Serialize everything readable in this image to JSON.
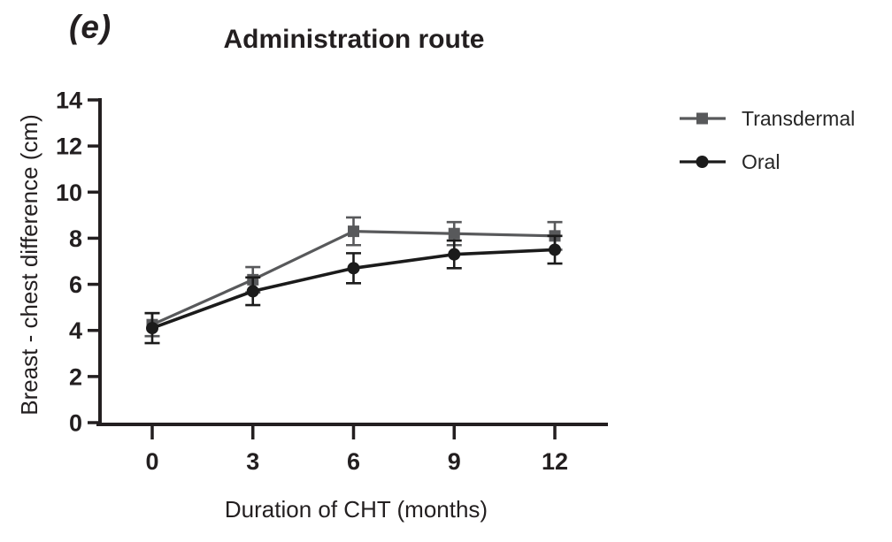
{
  "figure": {
    "panel_label": "(e)",
    "title": "Administration route"
  },
  "colors": {
    "ink": "#231f20",
    "transdermal": "#58595b",
    "oral": "#1b1b1b",
    "background": "#ffffff"
  },
  "chart_data": {
    "type": "line",
    "title": "Administration route",
    "xlabel": "Duration of CHT (months)",
    "ylabel": "Breast - chest difference (cm)",
    "x": [
      0,
      3,
      6,
      9,
      12
    ],
    "xtick_labels": [
      "0",
      "3",
      "6",
      "9",
      "12"
    ],
    "yticks": [
      0,
      2,
      4,
      6,
      8,
      10,
      12,
      14
    ],
    "ylim": [
      0,
      14
    ],
    "xlim": [
      0,
      12
    ],
    "grid": false,
    "legend_position": "right",
    "error_bars": true,
    "series": [
      {
        "name": "Transdermal",
        "marker": "square",
        "color": "#58595b",
        "values": [
          4.25,
          6.2,
          8.3,
          8.2,
          8.1
        ],
        "errors": [
          0.5,
          0.55,
          0.6,
          0.5,
          0.6
        ]
      },
      {
        "name": "Oral",
        "marker": "circle",
        "color": "#1b1b1b",
        "values": [
          4.1,
          5.7,
          6.7,
          7.3,
          7.5
        ],
        "errors": [
          0.65,
          0.6,
          0.65,
          0.6,
          0.6
        ]
      }
    ]
  }
}
